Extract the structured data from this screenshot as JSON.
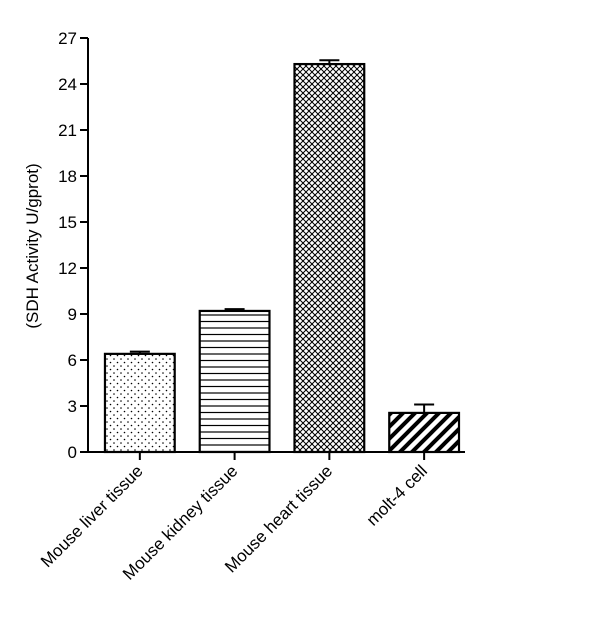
{
  "chart_data": {
    "type": "bar",
    "title": "",
    "xlabel": "",
    "ylabel": "(SDH Activity U/gprot)",
    "ylim": [
      0,
      27
    ],
    "yticks": [
      0,
      3,
      6,
      9,
      12,
      15,
      18,
      21,
      24,
      27
    ],
    "grid": false,
    "legend": "none",
    "categories": [
      "Mouse liver tissue",
      "Mouse kidney tissue",
      "Mouse heart tissue",
      "molt-4 cell"
    ],
    "values": [
      6.4,
      9.2,
      25.3,
      2.55
    ],
    "errors": [
      0.15,
      0.12,
      0.25,
      0.55
    ],
    "patterns": [
      "dots",
      "horizontal-lines",
      "crosshatch",
      "diagonal-stripes"
    ],
    "colors": {
      "stroke": "#000000",
      "fill": "#ffffff"
    }
  }
}
